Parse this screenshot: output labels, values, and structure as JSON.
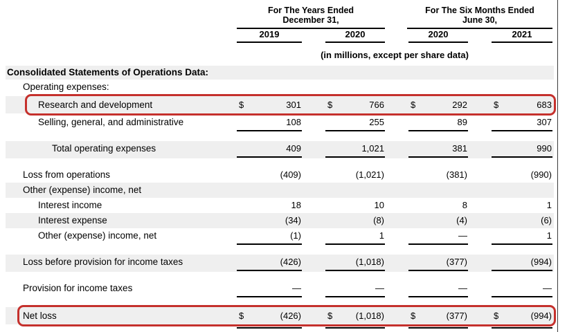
{
  "theme": {
    "highlight_color": "#c5302c",
    "row_shade_color": "#efefef",
    "rule_color": "#3a3a3a"
  },
  "header": {
    "groups": [
      {
        "line1": "For The Years Ended",
        "line2": "December 31,",
        "years": [
          "2019",
          "2020"
        ]
      },
      {
        "line1": "For The Six Months Ended",
        "line2": "June 30,",
        "years": [
          "2020",
          "2021"
        ]
      }
    ],
    "units_note": "(in millions, except per share data)"
  },
  "table": {
    "section_header": "Consolidated Statements of Operations Data:",
    "currency_symbol": "$",
    "columns": [
      "FY 2019",
      "FY 2020",
      "6M 2020",
      "6M 2021"
    ],
    "rows": [
      {
        "label": "Operating expenses:",
        "indent": 1,
        "values": null
      },
      {
        "label": "Research and development",
        "indent": 2,
        "dollar": true,
        "shaded": true,
        "highlighted": true,
        "values": [
          "301",
          "766",
          "292",
          "683"
        ]
      },
      {
        "label": "Selling, general, and administrative",
        "indent": 2,
        "underline": true,
        "values": [
          "108",
          "255",
          "89",
          "307"
        ]
      },
      {
        "label": "Total operating expenses",
        "indent": 3,
        "shaded": true,
        "underline": true,
        "values": [
          "409",
          "1,021",
          "381",
          "990"
        ]
      },
      {
        "label": "Loss from operations",
        "indent": 1,
        "values": [
          "(409)",
          "(1,021)",
          "(381)",
          "(990)"
        ]
      },
      {
        "label": "Other (expense) income, net",
        "indent": 1,
        "shaded": true,
        "values": null
      },
      {
        "label": "Interest income",
        "indent": 2,
        "values": [
          "18",
          "10",
          "8",
          "1"
        ]
      },
      {
        "label": "Interest expense",
        "indent": 2,
        "shaded": true,
        "values": [
          "(34)",
          "(8)",
          "(4)",
          "(6)"
        ]
      },
      {
        "label": "Other (expense) income, net",
        "indent": 2,
        "underline": true,
        "values": [
          "(1)",
          "1",
          "—",
          "1"
        ]
      },
      {
        "label": "Loss before provision for income taxes",
        "indent": 1,
        "shaded": true,
        "underline": true,
        "values": [
          "(426)",
          "(1,018)",
          "(377)",
          "(994)"
        ]
      },
      {
        "label": "Provision for income taxes",
        "indent": 1,
        "underline": true,
        "values": [
          "—",
          "—",
          "—",
          "—"
        ]
      },
      {
        "label": "Net loss",
        "indent": 1,
        "dollar": true,
        "shaded": true,
        "highlighted": true,
        "double_underline": true,
        "values": [
          "(426)",
          "(1,018)",
          "(377)",
          "(994)"
        ]
      }
    ]
  }
}
